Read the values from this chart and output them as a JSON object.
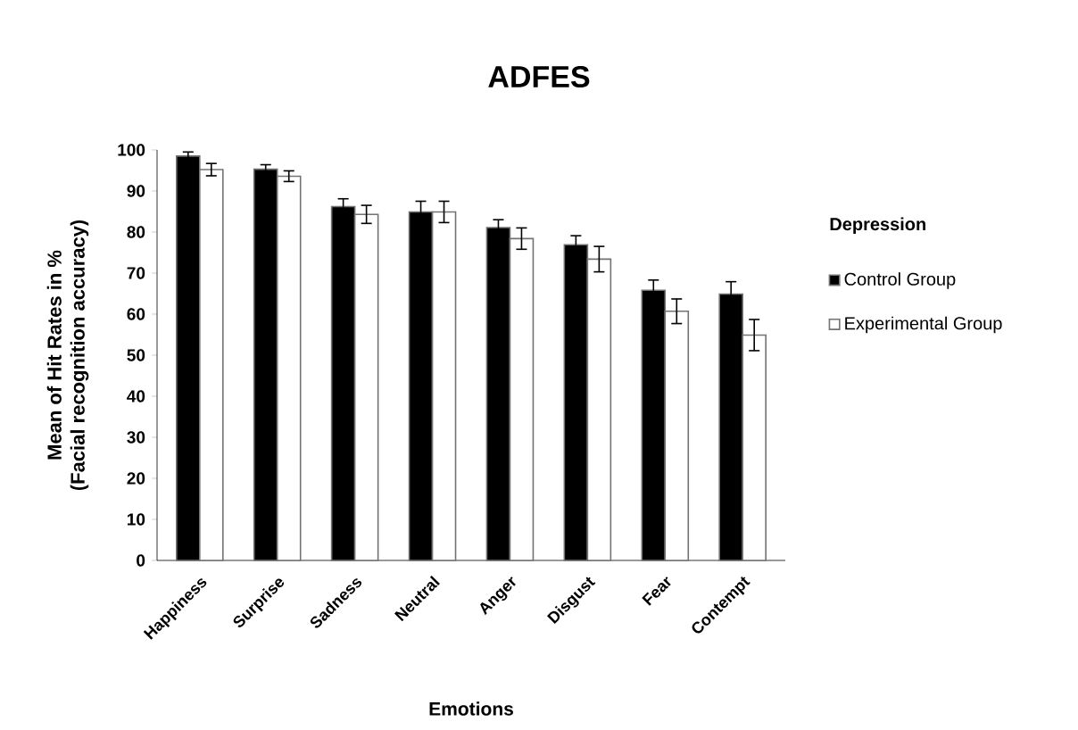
{
  "chart_data": {
    "type": "bar",
    "title": "ADFES",
    "xlabel": "Emotions",
    "ylabel": "Mean of Hit Rates in %\n(Facial recognition accuracy)",
    "legend_title": "Depression",
    "categories": [
      "Happiness",
      "Surprise",
      "Sadness",
      "Neutral",
      "Anger",
      "Disgust",
      "Fear",
      "Contempt"
    ],
    "series": [
      {
        "name": "Control Group",
        "color": "#000000",
        "values": [
          98.5,
          95.3,
          86.2,
          84.9,
          81.1,
          76.9,
          65.8,
          64.9
        ],
        "errors": [
          1.0,
          1.1,
          1.9,
          2.6,
          1.9,
          2.2,
          2.5,
          3.0
        ]
      },
      {
        "name": "Experimental Group",
        "color": "#ffffff",
        "values": [
          95.2,
          93.6,
          84.3,
          84.9,
          78.4,
          73.4,
          60.7,
          54.9
        ],
        "errors": [
          1.5,
          1.3,
          2.2,
          2.6,
          2.6,
          3.1,
          3.0,
          3.8
        ]
      }
    ],
    "ylim": [
      0,
      100
    ],
    "yticks": [
      0,
      10,
      20,
      30,
      40,
      50,
      60,
      70,
      80,
      90,
      100
    ],
    "grid": false,
    "legend": "right"
  }
}
